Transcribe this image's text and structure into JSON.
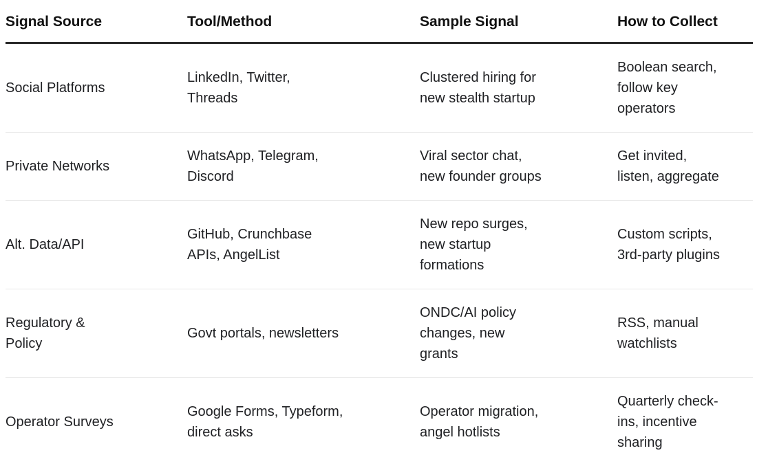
{
  "chart_data": {
    "type": "table",
    "columns": [
      "Signal Source",
      "Tool/Method",
      "Sample Signal",
      "How to Collect"
    ],
    "rows": [
      [
        "Social Platforms",
        "LinkedIn, Twitter,\nThreads",
        "Clustered hiring for\nnew stealth startup",
        "Boolean search,\nfollow key\noperators"
      ],
      [
        "Private Networks",
        "WhatsApp, Telegram,\nDiscord",
        "Viral sector chat,\nnew founder groups",
        "Get invited,\nlisten, aggregate"
      ],
      [
        "Alt. Data/API",
        "GitHub, Crunchbase\nAPIs, AngelList",
        "New repo surges,\nnew startup\nformations",
        "Custom scripts,\n3rd-party plugins"
      ],
      [
        "Regulatory &\nPolicy",
        "Govt portals, newsletters",
        "ONDC/AI policy\nchanges, new\ngrants",
        "RSS, manual\nwatchlists"
      ],
      [
        "Operator Surveys",
        "Google Forms, Typeform,\ndirect asks",
        "Operator migration,\nangel hotlists",
        "Quarterly check-\nins, incentive\nsharing"
      ]
    ],
    "layout_hints": {
      "grid": "horizontal rules only",
      "header_rule_thick": true
    }
  },
  "colors": {
    "background": "#ffffff",
    "header_text": "#111111",
    "body_text": "#202124",
    "header_rule": "#2b2b2b",
    "row_divider": "#e8e8e8"
  }
}
